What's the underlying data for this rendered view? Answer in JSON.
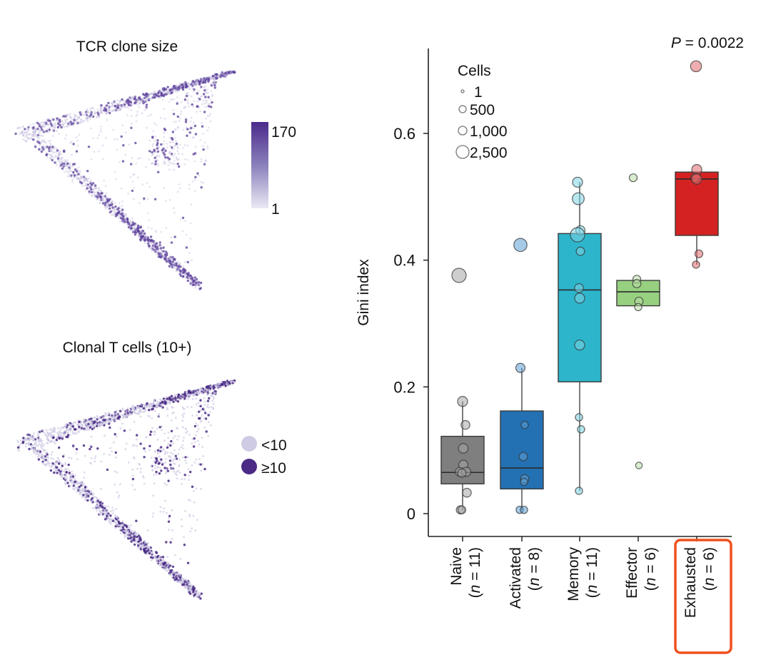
{
  "panels": {
    "umap_top": {
      "title": "TCR clone size",
      "colorbar": {
        "max_label": "170",
        "min_label": "1",
        "color_high": "#4b2a8c",
        "color_mid": "#8a80bb",
        "color_low": "#ebe9f4"
      }
    },
    "umap_bottom": {
      "title": "Clonal T cells (10+)",
      "legend": [
        {
          "label": "<10",
          "color": "#cfcbe4"
        },
        {
          "label": "≥10",
          "color": "#4a2a85"
        }
      ]
    }
  },
  "chart_data": {
    "type": "box",
    "title": "",
    "annotation": {
      "p_label": "P",
      "p_value": " = 0.0022"
    },
    "xlabel": "",
    "ylabel": "Gini index",
    "ylim": [
      -0.035,
      0.75
    ],
    "yticks": [
      0,
      0.2,
      0.4,
      0.6
    ],
    "ytick_labels": [
      "0",
      "0.2",
      "0.4",
      "0.6"
    ],
    "grid": false,
    "size_legend": {
      "title": "Cells",
      "entries": [
        {
          "label": "1",
          "cells": 1
        },
        {
          "label": "500",
          "cells": 500
        },
        {
          "label": "1,000",
          "cells": 1000
        },
        {
          "label": "2,500",
          "cells": 2500
        }
      ],
      "placement": "top-left"
    },
    "categories": [
      {
        "name": "Naive",
        "n_label": "(n = 11)",
        "n": 11,
        "color": "#7f7f7f",
        "point_color": "#a6a6a6",
        "box": {
          "q1": 0.047,
          "median": 0.065,
          "q3": 0.122,
          "whisker_low": 0.006,
          "whisker_high": 0.177
        },
        "points": [
          {
            "y": 0.376,
            "cells": 2500,
            "dx": -0.5
          },
          {
            "y": 0.177,
            "cells": 900,
            "dx": 0
          },
          {
            "y": 0.14,
            "cells": 600,
            "dx": 0.4
          },
          {
            "y": 0.103,
            "cells": 800,
            "dx": 0.1
          },
          {
            "y": 0.077,
            "cells": 700,
            "dx": 0.1
          },
          {
            "y": 0.066,
            "cells": 600,
            "dx": -0.4
          },
          {
            "y": 0.066,
            "cells": 700,
            "dx": 0.5
          },
          {
            "y": 0.064,
            "cells": 500,
            "dx": -0.1
          },
          {
            "y": 0.033,
            "cells": 600,
            "dx": 0.6
          },
          {
            "y": 0.006,
            "cells": 500,
            "dx": -0.3
          },
          {
            "y": 0.006,
            "cells": 400,
            "dx": -0.1
          }
        ]
      },
      {
        "name": "Activated",
        "n_label": "(n = 8)",
        "n": 8,
        "color": "#2371b3",
        "point_color": "#5f9fd3",
        "box": {
          "q1": 0.039,
          "median": 0.072,
          "q3": 0.162,
          "whisker_low": 0.006,
          "whisker_high": 0.23
        },
        "points": [
          {
            "y": 0.424,
            "cells": 2000,
            "dx": -0.2
          },
          {
            "y": 0.23,
            "cells": 700,
            "dx": -0.2
          },
          {
            "y": 0.14,
            "cells": 300,
            "dx": 0.4
          },
          {
            "y": 0.09,
            "cells": 500,
            "dx": 0.2
          },
          {
            "y": 0.055,
            "cells": 500,
            "dx": 0.4
          },
          {
            "y": 0.05,
            "cells": 300,
            "dx": 0.3
          },
          {
            "y": 0.006,
            "cells": 300,
            "dx": -0.3
          },
          {
            "y": 0.006,
            "cells": 300,
            "dx": 0.3
          }
        ]
      },
      {
        "name": "Memory",
        "n_label": "(n = 11)",
        "n": 11,
        "color": "#2db5cb",
        "point_color": "#7dd3e3",
        "box": {
          "q1": 0.208,
          "median": 0.353,
          "q3": 0.442,
          "whisker_low": 0.036,
          "whisker_high": 0.523
        },
        "points": [
          {
            "y": 0.523,
            "cells": 900,
            "dx": -0.3
          },
          {
            "y": 0.497,
            "cells": 1500,
            "dx": -0.2
          },
          {
            "y": 0.447,
            "cells": 700,
            "dx": 0.1
          },
          {
            "y": 0.44,
            "cells": 2500,
            "dx": -0.3
          },
          {
            "y": 0.414,
            "cells": 500,
            "dx": 0.1
          },
          {
            "y": 0.356,
            "cells": 600,
            "dx": -0.1
          },
          {
            "y": 0.34,
            "cells": 900,
            "dx": 0
          },
          {
            "y": 0.266,
            "cells": 900,
            "dx": 0
          },
          {
            "y": 0.152,
            "cells": 300,
            "dx": -0.1
          },
          {
            "y": 0.133,
            "cells": 300,
            "dx": 0.2
          },
          {
            "y": 0.036,
            "cells": 300,
            "dx": -0.1
          }
        ]
      },
      {
        "name": "Effector",
        "n_label": "(n = 6)",
        "n": 6,
        "color": "#97d07f",
        "point_color": "#b9dca7",
        "box": {
          "q1": 0.328,
          "median": 0.35,
          "q3": 0.368,
          "whisker_low": 0.328,
          "whisker_high": 0.368
        },
        "points": [
          {
            "y": 0.53,
            "cells": 400,
            "dx": -0.7
          },
          {
            "y": 0.37,
            "cells": 400,
            "dx": -0.2
          },
          {
            "y": 0.363,
            "cells": 500,
            "dx": -0.2
          },
          {
            "y": 0.335,
            "cells": 500,
            "dx": 0.1
          },
          {
            "y": 0.326,
            "cells": 300,
            "dx": 0
          },
          {
            "y": 0.076,
            "cells": 200,
            "dx": 0.1
          }
        ]
      },
      {
        "name": "Exhausted",
        "n_label": "(n = 6)",
        "n": 6,
        "color": "#d42222",
        "point_color": "#e06a6e",
        "highlight": true,
        "box": {
          "q1": 0.439,
          "median": 0.528,
          "q3": 0.539,
          "whisker_low": 0.393,
          "whisker_high": 0.539
        },
        "points": [
          {
            "y": 0.706,
            "cells": 1200,
            "dx": -0.1
          },
          {
            "y": 0.543,
            "cells": 900,
            "dx": 0
          },
          {
            "y": 0.53,
            "cells": 700,
            "dx": -0.2
          },
          {
            "y": 0.528,
            "cells": 1000,
            "dx": 0
          },
          {
            "y": 0.41,
            "cells": 400,
            "dx": 0.3
          },
          {
            "y": 0.393,
            "cells": 300,
            "dx": -0.1
          }
        ]
      }
    ],
    "highlight_color": "#f0501e"
  }
}
